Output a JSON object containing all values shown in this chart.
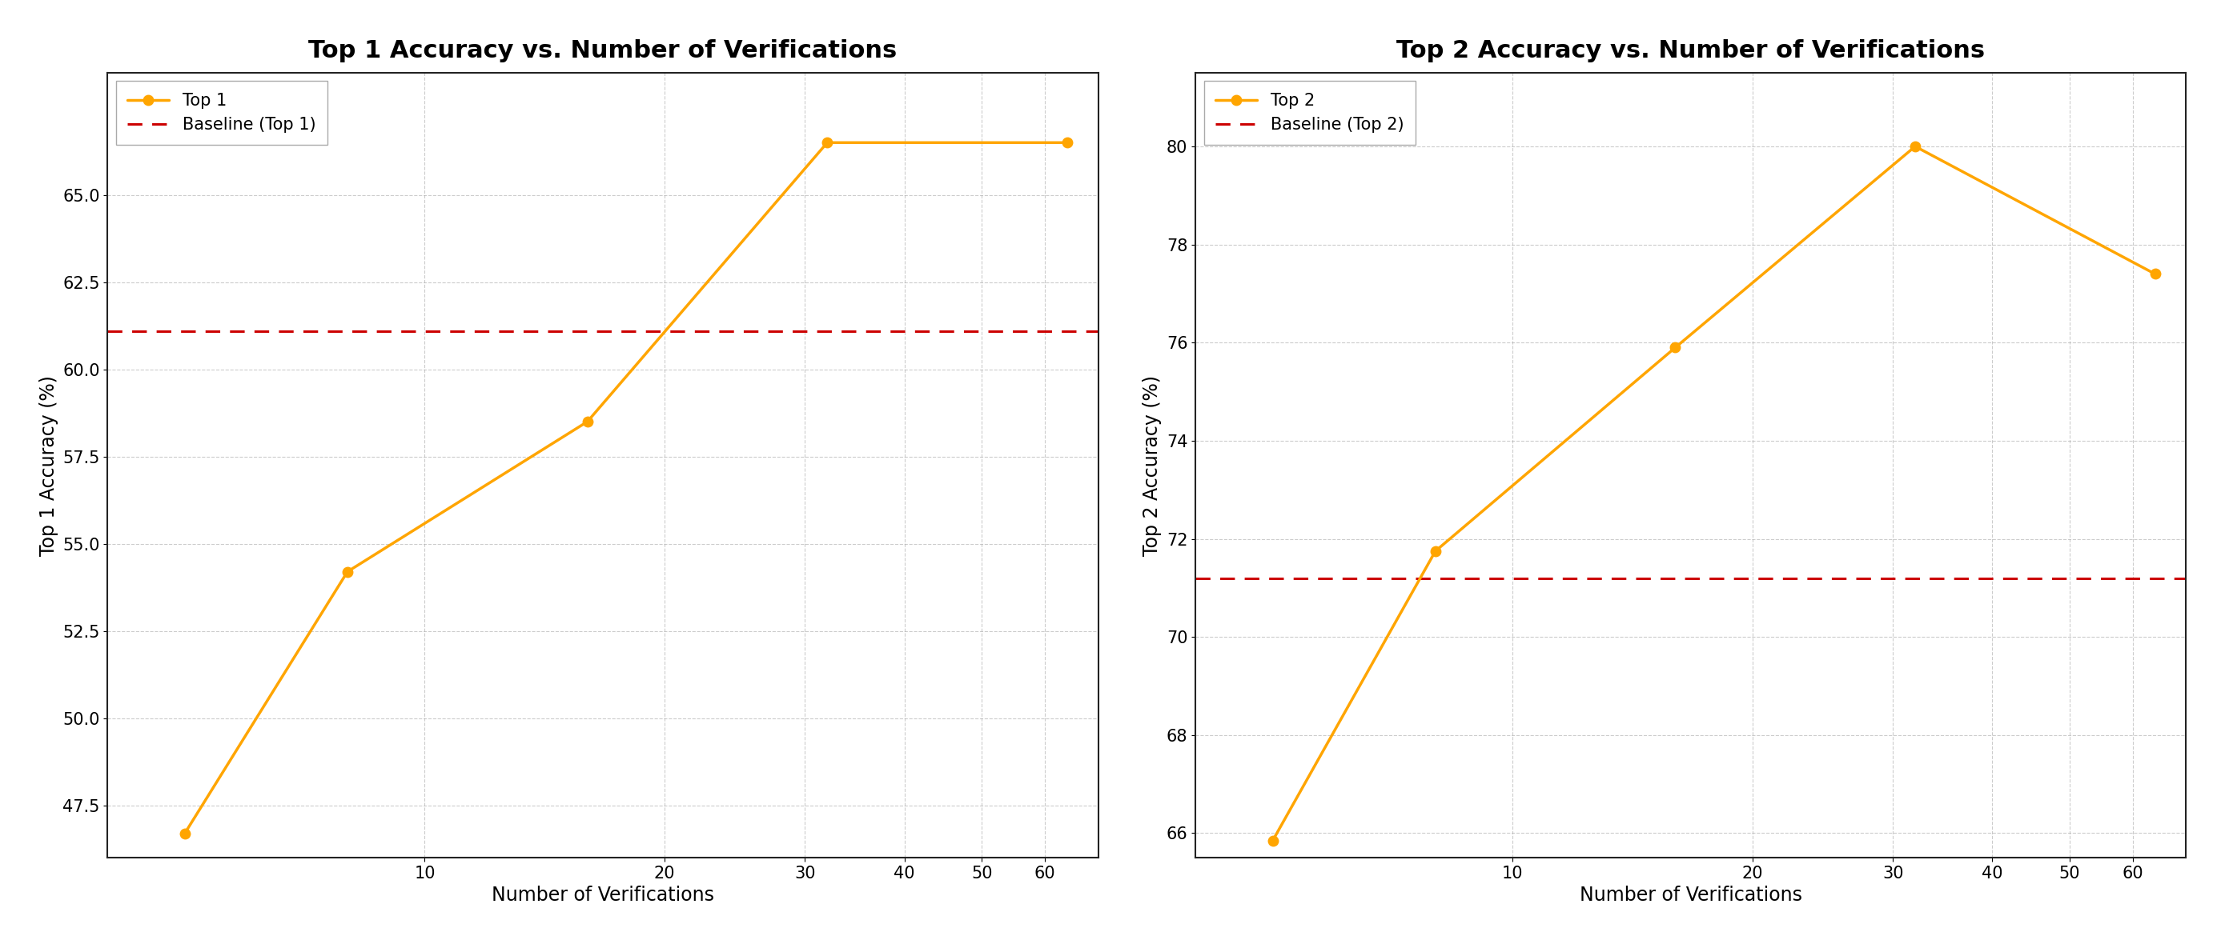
{
  "top1": {
    "title": "Top 1 Accuracy vs. Number of Verifications",
    "x": [
      5,
      8,
      16,
      32,
      64
    ],
    "y": [
      46.7,
      54.2,
      58.5,
      66.5,
      66.5
    ],
    "baseline": 61.1,
    "ylabel": "Top 1 Accuracy (%)",
    "xlabel": "Number of Verifications",
    "line_color": "#FFA500",
    "baseline_color": "#CC0000",
    "legend_line": "Top 1",
    "legend_baseline": "Baseline (Top 1)",
    "ylim": [
      46.0,
      68.5
    ],
    "yticks": [
      47.5,
      50.0,
      52.5,
      55.0,
      57.5,
      60.0,
      62.5,
      65.0
    ]
  },
  "top2": {
    "title": "Top 2 Accuracy vs. Number of Verifications",
    "x": [
      5,
      8,
      16,
      32,
      64
    ],
    "y": [
      65.85,
      71.75,
      75.9,
      80.0,
      77.4
    ],
    "baseline": 71.2,
    "ylabel": "Top 2 Accuracy (%)",
    "xlabel": "Number of Verifications",
    "line_color": "#FFA500",
    "baseline_color": "#CC0000",
    "legend_line": "Top 2",
    "legend_baseline": "Baseline (Top 2)",
    "ylim": [
      65.5,
      81.5
    ],
    "yticks": [
      66,
      68,
      70,
      72,
      74,
      76,
      78,
      80
    ]
  },
  "bg_color": "#ffffff",
  "grid_color": "#aaaaaa",
  "title_fontsize": 22,
  "label_fontsize": 17,
  "tick_fontsize": 15,
  "legend_fontsize": 15,
  "line_width": 2.5,
  "marker": "o",
  "marker_size": 9,
  "xticks": [
    10,
    20,
    30,
    40,
    50,
    60
  ],
  "xlim": [
    4,
    70
  ]
}
